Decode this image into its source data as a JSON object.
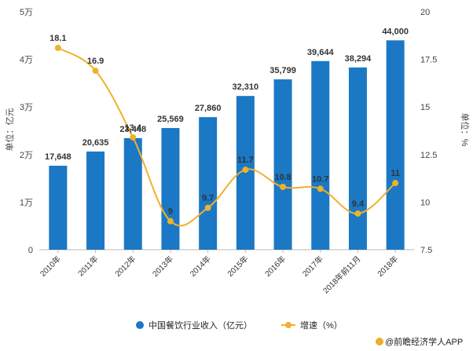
{
  "chart_data": {
    "type": "bar",
    "categories": [
      "2010年",
      "2011年",
      "2012年",
      "2013年",
      "2014年",
      "2015年",
      "2016年",
      "2017年",
      "2018年前11月",
      "2018年"
    ],
    "series": [
      {
        "name": "中国餐饮行业收入（亿元）",
        "type": "bar",
        "axis": "left",
        "values": [
          17648,
          20635,
          23448,
          25569,
          27860,
          32310,
          35799,
          39644,
          38294,
          44000
        ],
        "labels": [
          "17,648",
          "20,635",
          "23,448",
          "25,569",
          "27,860",
          "32,310",
          "35,799",
          "39,644",
          "38,294",
          "44,000"
        ],
        "color": "#1b78c4"
      },
      {
        "name": "增速（%）",
        "type": "line",
        "axis": "right",
        "values": [
          18.1,
          16.9,
          13.4,
          9,
          9.7,
          11.7,
          10.8,
          10.7,
          9.4,
          11
        ],
        "labels": [
          "18.1",
          "16.9",
          "13.4",
          "9",
          "9.7",
          "11.7",
          "10.8",
          "10.7",
          "9.4",
          "11"
        ],
        "color": "#f0b12c"
      }
    ],
    "y_left": {
      "label": "单位：亿元",
      "ylim": [
        0,
        50000
      ],
      "ticks": [
        0,
        10000,
        20000,
        30000,
        40000,
        50000
      ],
      "tick_labels": [
        "0",
        "1万",
        "2万",
        "3万",
        "4万",
        "5万"
      ]
    },
    "y_right": {
      "label": "单位：%",
      "ylim": [
        7.5,
        20
      ],
      "ticks": [
        7.5,
        10,
        12.5,
        15,
        17.5,
        20
      ],
      "tick_labels": [
        "7.5",
        "10",
        "12.5",
        "15",
        "17.5",
        "20"
      ]
    },
    "legend_position": "bottom",
    "grid": false
  },
  "credit": "@前瞻经济学人APP"
}
